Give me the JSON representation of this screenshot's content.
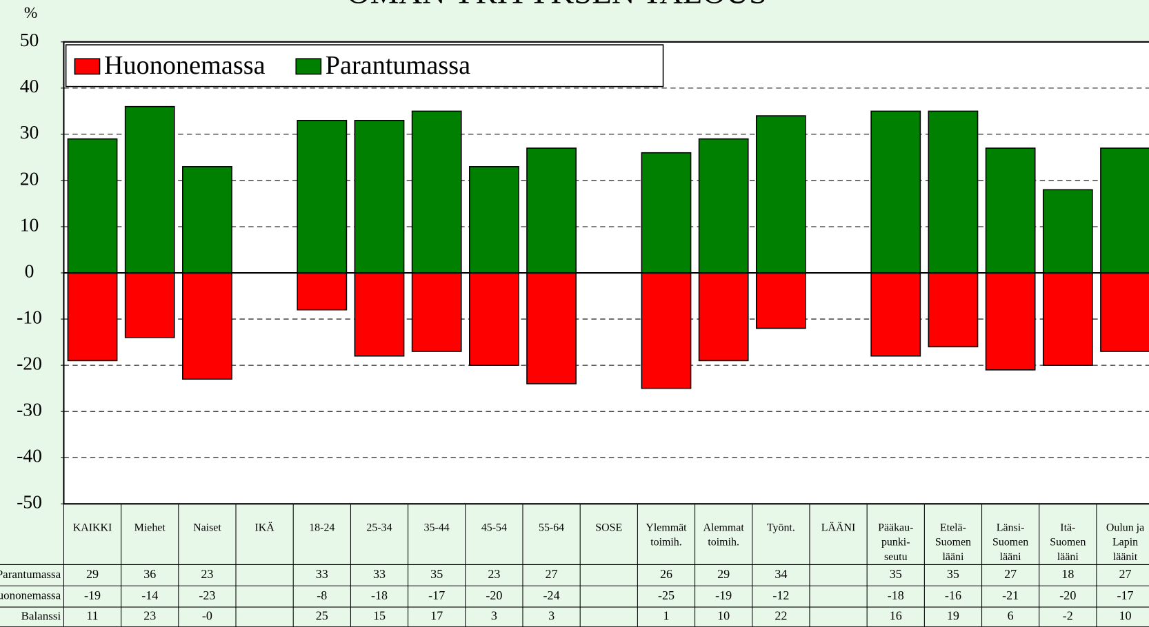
{
  "chart_data": {
    "type": "bar",
    "title": "OMAN YRITYKSEN TALOUS",
    "y_label": "%",
    "categories": [
      "KAIKKI",
      "Miehet",
      "Naiset",
      "IKÄ",
      "18-24",
      "25-34",
      "35-44",
      "45-54",
      "55-64",
      "SOSE",
      "Ylemmät\ntoimih.",
      "Alemmat\ntoimih.",
      "Työnt.",
      "LÄÄNI",
      "Pääkau-\npunki-\nseutu",
      "Etelä-\nSuomen\nlääni",
      "Länsi-\nSuomen\nlääni",
      "Itä-\nSuomen\nlääni",
      "Oulun ja\nLapin\nläänit"
    ],
    "series": [
      {
        "name": "Parantumassa",
        "color": "#008000",
        "values": [
          29,
          36,
          23,
          null,
          33,
          33,
          35,
          23,
          27,
          null,
          26,
          29,
          34,
          null,
          35,
          35,
          27,
          18,
          27
        ]
      },
      {
        "name": "Huononemassa",
        "color": "#ff0000",
        "values": [
          -19,
          -14,
          -23,
          null,
          -8,
          -18,
          -17,
          -20,
          -24,
          null,
          -25,
          -19,
          -12,
          null,
          -18,
          -16,
          -21,
          -20,
          -17
        ]
      }
    ],
    "balance": {
      "name": "Balanssi",
      "values": [
        11,
        23,
        0,
        null,
        25,
        15,
        17,
        3,
        3,
        null,
        1,
        10,
        22,
        null,
        16,
        19,
        6,
        -2,
        10
      ],
      "value_labels": [
        "11",
        "23",
        "-0",
        null,
        "25",
        "15",
        "17",
        "3",
        "3",
        null,
        "1",
        "10",
        "22",
        null,
        "16",
        "19",
        "6",
        "-2",
        "10"
      ]
    },
    "ylim": [
      -50,
      50
    ],
    "yticks": [
      -50,
      -40,
      -30,
      -20,
      -10,
      0,
      10,
      20,
      30,
      40,
      50
    ],
    "grid": true,
    "legend": "top-left"
  }
}
